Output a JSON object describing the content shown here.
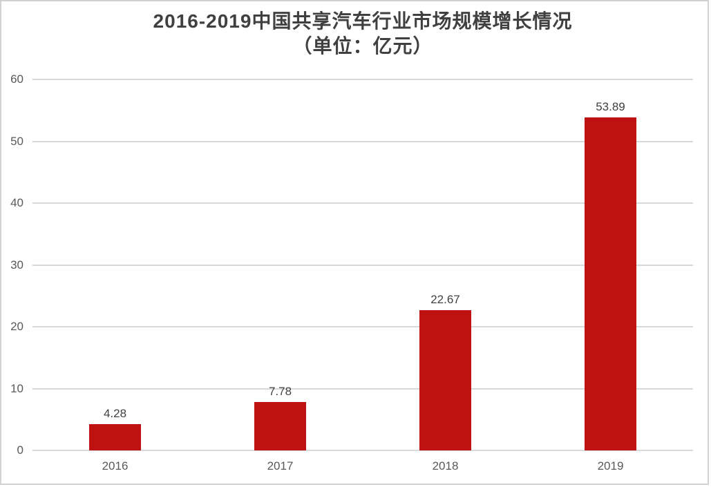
{
  "chart_data": {
    "type": "bar",
    "title": "2016-2019中国共享汽车行业市场规模增长情况",
    "subtitle": "（单位：亿元）",
    "categories": [
      "2016",
      "2017",
      "2018",
      "2019"
    ],
    "values": [
      4.28,
      7.78,
      22.67,
      53.89
    ],
    "value_labels": [
      "4.28",
      "7.78",
      "22.67",
      "53.89"
    ],
    "ylabel": "",
    "xlabel": "",
    "ylim": [
      0,
      60
    ],
    "yticks": [
      0,
      10,
      20,
      30,
      40,
      50,
      60
    ],
    "grid": "horizontal",
    "legend": "none",
    "bar_color": "#be1212",
    "title_color": "#404040",
    "axis_label_color": "#595959",
    "gridline_color": "#d9d9d9"
  }
}
